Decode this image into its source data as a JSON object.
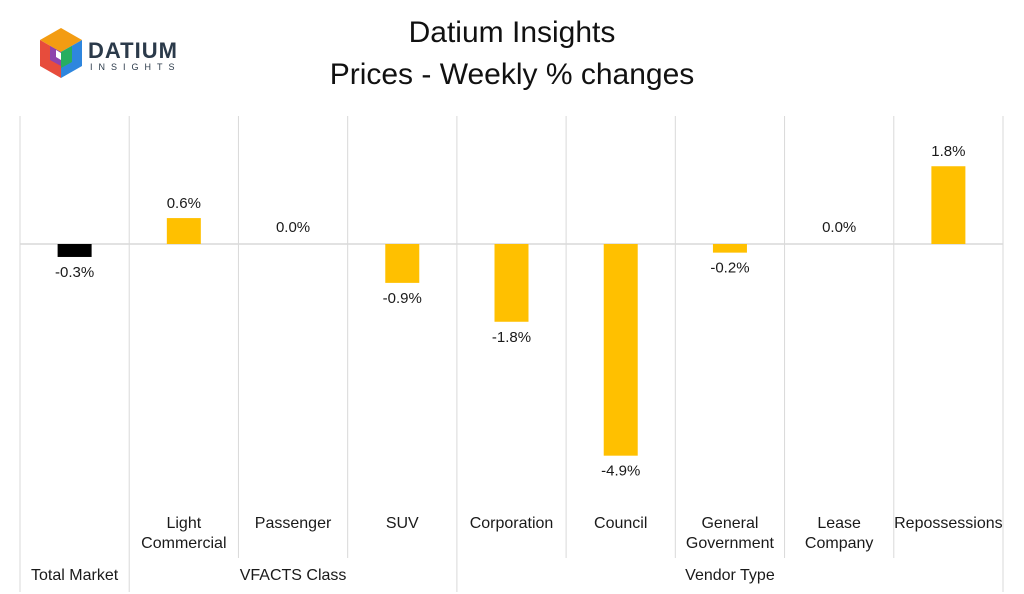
{
  "logo": {
    "name": "DATIUM",
    "sub": "INSIGHTS",
    "icon": "datium-cube-logo-icon"
  },
  "chart_data": {
    "type": "bar",
    "title": "Datium Insights",
    "subtitle": "Prices - Weekly % changes",
    "categories": [
      "",
      "Light Commercial",
      "Passenger",
      "SUV",
      "Corporation",
      "Council",
      "General Government",
      "Lease Company",
      "Repossessions"
    ],
    "category_lines": [
      [],
      [
        "Light",
        "Commercial"
      ],
      [
        "Passenger"
      ],
      [
        "SUV"
      ],
      [
        "Corporation"
      ],
      [
        "Council"
      ],
      [
        "General",
        "Government"
      ],
      [
        "Lease",
        "Company"
      ],
      [
        "Repossessions"
      ]
    ],
    "values": [
      -0.3,
      0.6,
      0.0,
      -0.9,
      -1.8,
      -4.9,
      -0.2,
      0.0,
      1.8
    ],
    "value_labels": [
      "-0.3%",
      "0.6%",
      "0.0%",
      "-0.9%",
      "-1.8%",
      "-4.9%",
      "-0.2%",
      "0.0%",
      "1.8%"
    ],
    "groups": [
      {
        "label": "Total Market",
        "start": 0,
        "end": 0
      },
      {
        "label": "VFACTS Class",
        "start": 1,
        "end": 3
      },
      {
        "label": "Vendor Type",
        "start": 4,
        "end": 8
      }
    ],
    "ylim": [
      -6.0,
      3.0
    ],
    "colors": {
      "highlight": "#000000",
      "default": "#FFC000",
      "grid": "#d9d9d9"
    },
    "highlight_index": 0
  }
}
